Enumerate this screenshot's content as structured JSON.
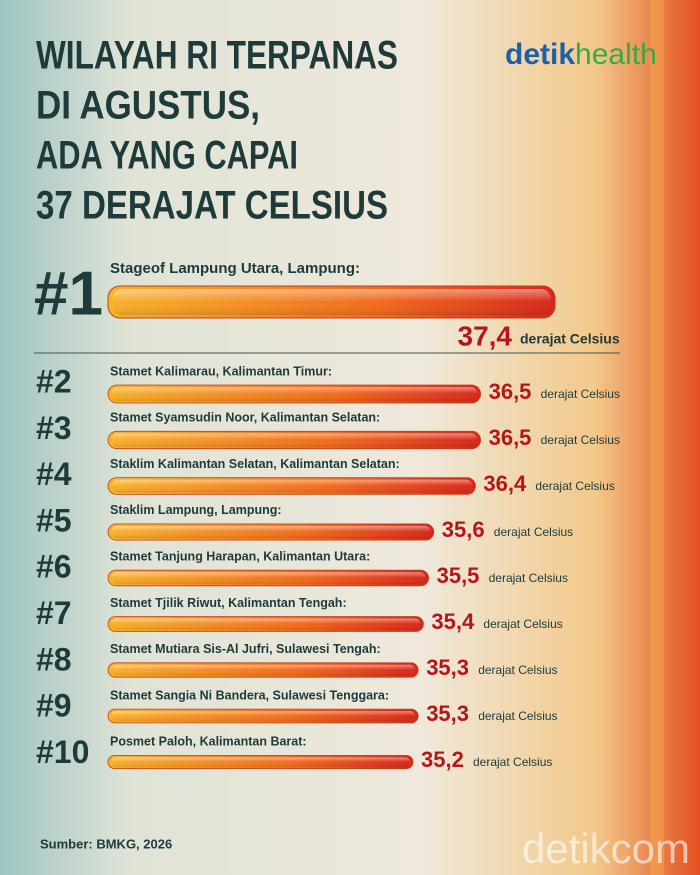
{
  "chart_data": {
    "type": "bar",
    "title_lines": [
      "WILAYAH RI TERPANAS",
      "DI AGUSTUS,",
      "ADA YANG CAPAI",
      "37 DERAJAT CELSIUS"
    ],
    "brand_prefix": "detik",
    "brand_suffix": "health",
    "ranks": [
      "#1",
      "#2",
      "#3",
      "#4",
      "#5",
      "#6",
      "#7",
      "#8",
      "#9",
      "#10"
    ],
    "categories": [
      "Stageof Lampung Utara, Lampung:",
      "Stamet Kalimarau, Kalimantan Timur:",
      "Stamet Syamsudin Noor, Kalimantan Selatan:",
      "Staklim Kalimantan Selatan, Kalimantan Selatan:",
      "Staklim Lampung, Lampung:",
      "Stamet Tanjung Harapan, Kalimantan Utara:",
      "Stamet Tjilik Riwut, Kalimantan Tengah:",
      "Stamet Mutiara Sis-Al Jufri, Sulawesi Tengah:",
      "Stamet Sangia Ni Bandera, Sulawesi Tenggara:",
      "Posmet Paloh, Kalimantan Barat:"
    ],
    "values": [
      37.4,
      36.5,
      36.5,
      36.4,
      35.6,
      35.5,
      35.4,
      35.3,
      35.3,
      35.2
    ],
    "value_labels": [
      "37,4",
      "36,5",
      "36,5",
      "36,4",
      "35,6",
      "35,5",
      "35,4",
      "35,3",
      "35,3",
      "35,2"
    ],
    "unit": "derajat Celsius",
    "color": "#f07a1a",
    "source": "Sumber:  BMKG, 2026",
    "watermark": "detikcom"
  }
}
